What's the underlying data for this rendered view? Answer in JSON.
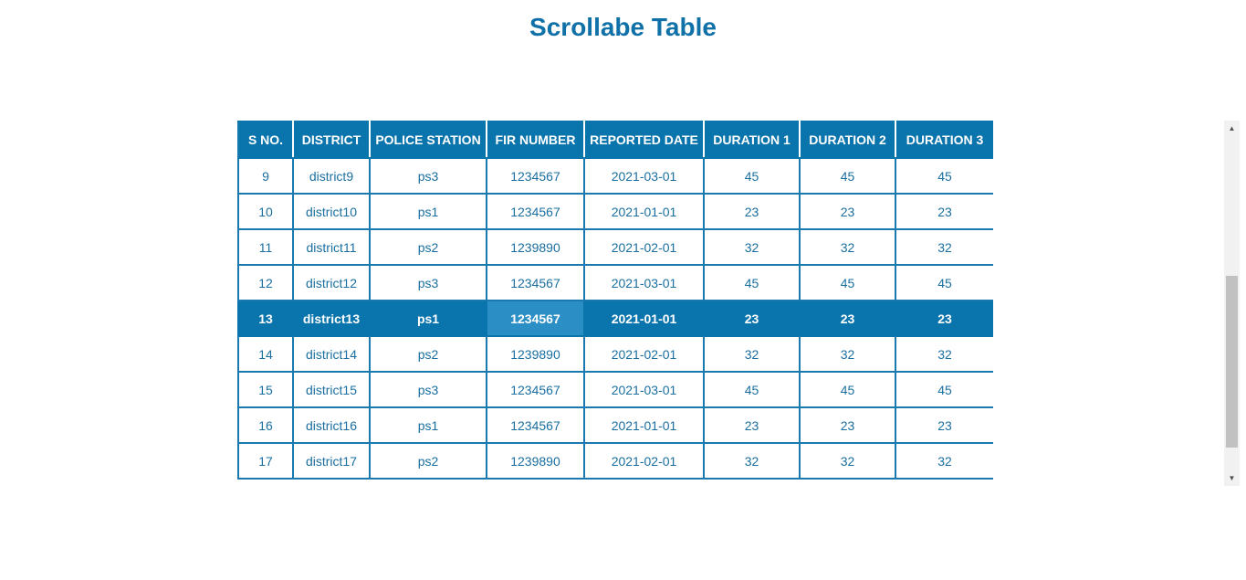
{
  "page": {
    "title": "Scrollabe Table"
  },
  "table": {
    "columns": [
      "S NO.",
      "DISTRICT",
      "POLICE STATION",
      "FIR NUMBER",
      "REPORTED DATE",
      "DURATION 1",
      "DURATION 2",
      "DURATION 3"
    ],
    "rows": [
      [
        "9",
        "district9",
        "ps3",
        "1234567",
        "2021-03-01",
        "45",
        "45",
        "45"
      ],
      [
        "10",
        "district10",
        "ps1",
        "1234567",
        "2021-01-01",
        "23",
        "23",
        "23"
      ],
      [
        "11",
        "district11",
        "ps2",
        "1239890",
        "2021-02-01",
        "32",
        "32",
        "32"
      ],
      [
        "12",
        "district12",
        "ps3",
        "1234567",
        "2021-03-01",
        "45",
        "45",
        "45"
      ],
      [
        "13",
        "district13",
        "ps1",
        "1234567",
        "2021-01-01",
        "23",
        "23",
        "23"
      ],
      [
        "14",
        "district14",
        "ps2",
        "1239890",
        "2021-02-01",
        "32",
        "32",
        "32"
      ],
      [
        "15",
        "district15",
        "ps3",
        "1234567",
        "2021-03-01",
        "45",
        "45",
        "45"
      ],
      [
        "16",
        "district16",
        "ps1",
        "1234567",
        "2021-01-01",
        "23",
        "23",
        "23"
      ],
      [
        "17",
        "district17",
        "ps2",
        "1239890",
        "2021-02-01",
        "32",
        "32",
        "32"
      ]
    ],
    "selected_row_sno": "13",
    "hovered_column": "FIR NUMBER"
  },
  "colors": {
    "accent": "#0a74ad",
    "text": "#1a6fa0",
    "hover": "#2b8fc6"
  },
  "icons": {
    "scroll_up": "triangle-up-icon",
    "scroll_down": "triangle-down-icon"
  }
}
